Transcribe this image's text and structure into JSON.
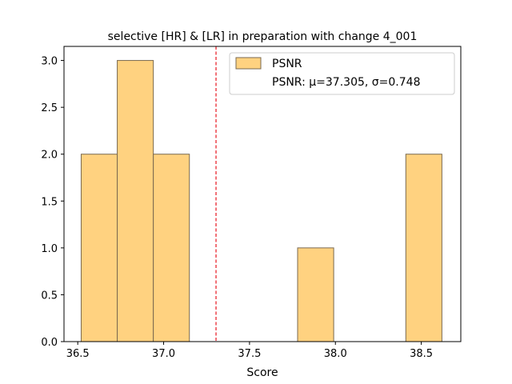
{
  "chart_data": {
    "type": "bar",
    "title": "selective [HR] & [LR] in preparation with change 4_001",
    "xlabel": "Score",
    "ylabel": "",
    "xlim": [
      36.42,
      38.73
    ],
    "ylim": [
      0,
      3.15
    ],
    "xticks": [
      "36.5",
      "37.0",
      "37.5",
      "38.0",
      "38.5"
    ],
    "xtick_values": [
      36.5,
      37.0,
      37.5,
      38.0,
      38.5
    ],
    "yticks": [
      "0.0",
      "0.5",
      "1.0",
      "1.5",
      "2.0",
      "2.5",
      "3.0"
    ],
    "ytick_values": [
      0,
      0.5,
      1.0,
      1.5,
      2.0,
      2.5,
      3.0
    ],
    "bins": [
      {
        "x0": 36.52,
        "x1": 36.73,
        "count": 2
      },
      {
        "x0": 36.73,
        "x1": 36.94,
        "count": 3
      },
      {
        "x0": 36.94,
        "x1": 37.15,
        "count": 2
      },
      {
        "x0": 37.15,
        "x1": 37.36,
        "count": 0
      },
      {
        "x0": 37.36,
        "x1": 37.57,
        "count": 0
      },
      {
        "x0": 37.57,
        "x1": 37.78,
        "count": 0
      },
      {
        "x0": 37.78,
        "x1": 37.99,
        "count": 1
      },
      {
        "x0": 37.99,
        "x1": 38.2,
        "count": 0
      },
      {
        "x0": 38.2,
        "x1": 38.41,
        "count": 0
      },
      {
        "x0": 38.41,
        "x1": 38.62,
        "count": 2
      }
    ],
    "mean_line": 37.305,
    "bar_color": "#ffd280",
    "bar_edge_color": "#7a6a50",
    "mean_line_color": "#e8141e",
    "legend": {
      "placement": "top-right",
      "series_label": "PSNR",
      "stats_label": "PSNR: μ=37.305, σ=0.748"
    }
  }
}
